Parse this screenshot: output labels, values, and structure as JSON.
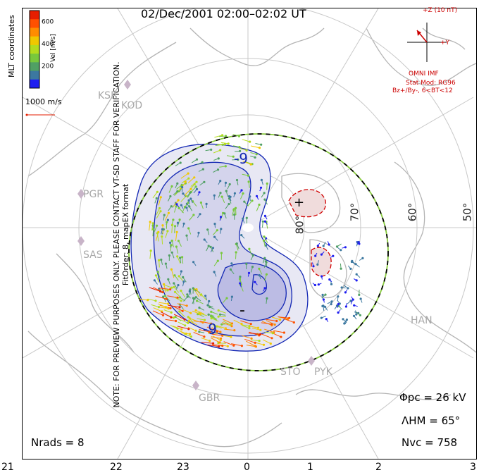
{
  "title": "02/Dec/2001 02:00–02:02 UT",
  "side_note_1": "NOTE: FOR PREVIEW PURPOSES ONLY. PLEASE CONTACT VT-SD STAFF FOR VERIFICATION.",
  "side_note_2": "FitOrder: 8,  mapEX format",
  "coord_label": "MLT coordinates",
  "ref_vector": "1000 m/s",
  "imf": {
    "bz_label": "+Z (10 nT)",
    "by_label": "+Y",
    "source": "OMNI IMF",
    "model": "Stat Mod: RG96",
    "model_params": "Bz+/By-, 6<BT<12"
  },
  "stats": {
    "phi_pc": "Φpc = 26 kV",
    "lambda_hm": "ΛHM = 65°",
    "n_vc": "Nvc = 758",
    "n_rads": "Nrads = 8"
  },
  "colors": {
    "potential_contour": "#1428b4",
    "positive_cell": "#d00000",
    "boundary_dash": "#86c93c",
    "coastline": "#b4b4b4"
  },
  "chart_data": {
    "type": "scatter",
    "projection": "polar-MLT",
    "title": "02/Dec/2001 02:00–02:02 UT",
    "x_axis_label": "MLT",
    "mlt_ticks": [
      "21",
      "22",
      "23",
      "0",
      "1",
      "2",
      "3"
    ],
    "latitude_labels": [
      "80°",
      "70°",
      "60°",
      "50°"
    ],
    "latitude_rings": [
      80,
      70,
      60,
      50
    ],
    "heppner_maynard_boundary_deg": 65,
    "colorbar": {
      "label": "Vel [m/s]",
      "ticks": [
        200,
        400,
        600
      ],
      "range": [
        0,
        700
      ],
      "colors": [
        "#1e1ef0",
        "#3c78a0",
        "#50a064",
        "#78c83c",
        "#b4dc1e",
        "#f0c800",
        "#ff8c00",
        "#ff5000",
        "#e61e00"
      ]
    },
    "contour_labels": [
      "-9",
      "-9"
    ],
    "contour_signs": [
      "-",
      "+"
    ],
    "radar_sites": [
      "KSR",
      "KOD",
      "PGR",
      "SAS",
      "HAN",
      "STO",
      "PYK",
      "GBR"
    ],
    "cross_polar_cap_potential_kV": 26,
    "n_vectors": 758,
    "n_radars": 8
  }
}
